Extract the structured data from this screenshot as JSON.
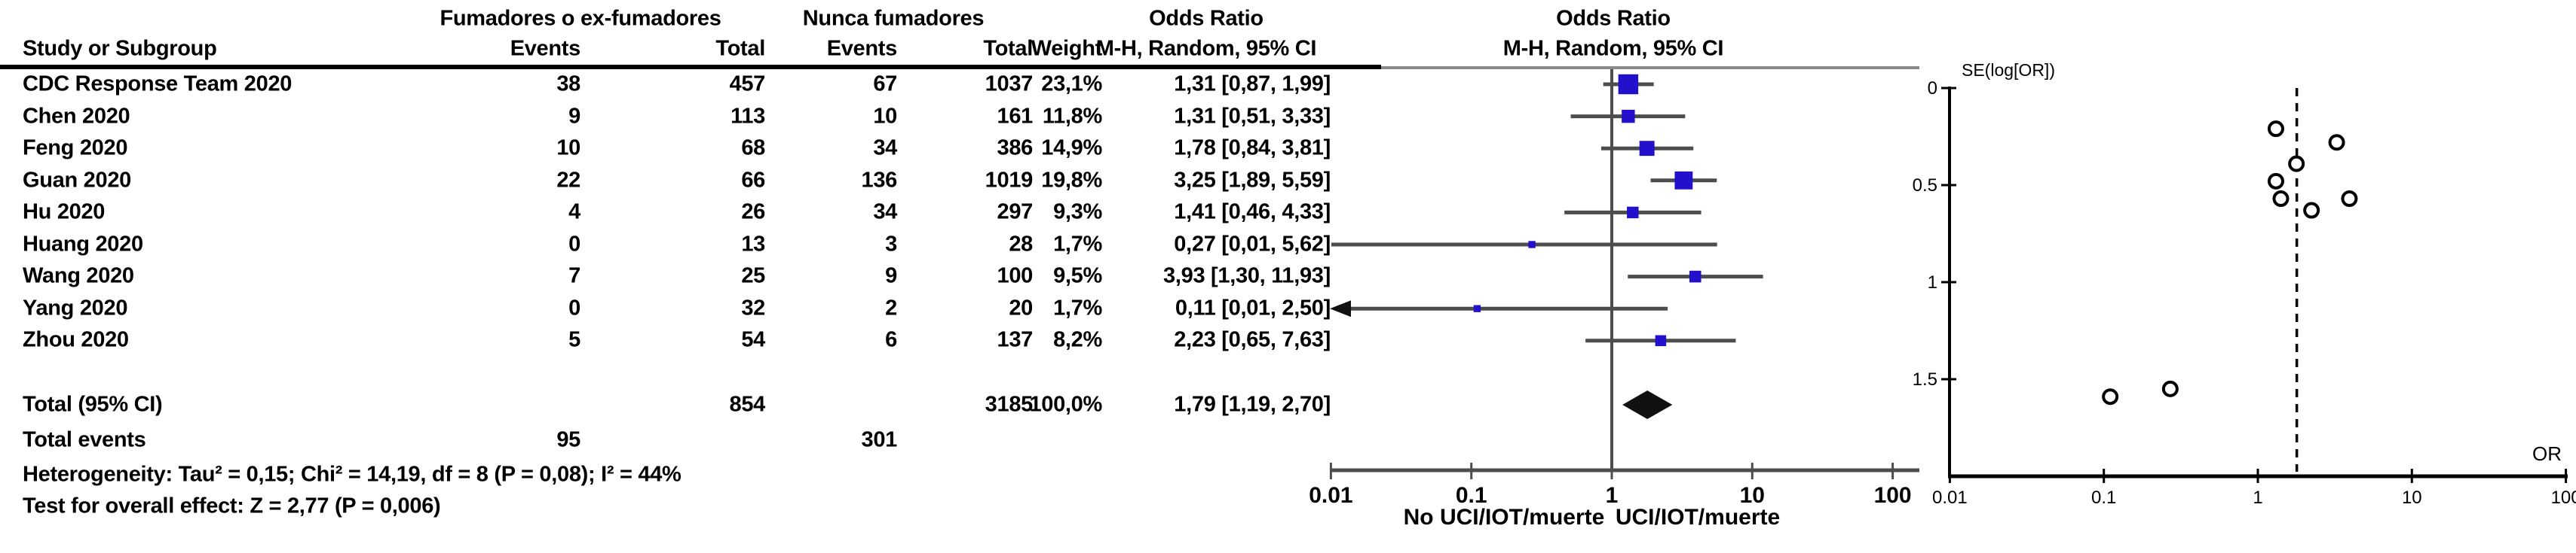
{
  "table": {
    "group1_header": "Fumadores o ex-fumadores",
    "group2_header": "Nunca fumadores",
    "col_study": "Study or Subgroup",
    "col_events": "Events",
    "col_total": "Total",
    "col_weight": "Weight",
    "or_header_line1": "Odds Ratio",
    "or_header_line2": "M-H, Random, 95% CI",
    "plot_header_line1": "Odds Ratio",
    "plot_header_line2": "M-H, Random, 95% CI",
    "rows": [
      {
        "study": "CDC Response Team 2020",
        "events1": "38",
        "total1": "457",
        "events2": "67",
        "total2": "1037",
        "weight": "23,1%",
        "ci": "1,31 [0,87, 1,99]"
      },
      {
        "study": "Chen 2020",
        "events1": "9",
        "total1": "113",
        "events2": "10",
        "total2": "161",
        "weight": "11,8%",
        "ci": "1,31 [0,51, 3,33]"
      },
      {
        "study": "Feng 2020",
        "events1": "10",
        "total1": "68",
        "events2": "34",
        "total2": "386",
        "weight": "14,9%",
        "ci": "1,78 [0,84, 3,81]"
      },
      {
        "study": "Guan 2020",
        "events1": "22",
        "total1": "66",
        "events2": "136",
        "total2": "1019",
        "weight": "19,8%",
        "ci": "3,25 [1,89, 5,59]"
      },
      {
        "study": "Hu 2020",
        "events1": "4",
        "total1": "26",
        "events2": "34",
        "total2": "297",
        "weight": "9,3%",
        "ci": "1,41 [0,46, 4,33]"
      },
      {
        "study": "Huang 2020",
        "events1": "0",
        "total1": "13",
        "events2": "3",
        "total2": "28",
        "weight": "1,7%",
        "ci": "0,27 [0,01, 5,62]"
      },
      {
        "study": "Wang 2020",
        "events1": "7",
        "total1": "25",
        "events2": "9",
        "total2": "100",
        "weight": "9,5%",
        "ci": "3,93 [1,30, 11,93]"
      },
      {
        "study": "Yang 2020",
        "events1": "0",
        "total1": "32",
        "events2": "2",
        "total2": "20",
        "weight": "1,7%",
        "ci": "0,11 [0,01, 2,50]"
      },
      {
        "study": "Zhou 2020",
        "events1": "5",
        "total1": "54",
        "events2": "6",
        "total2": "137",
        "weight": "8,2%",
        "ci": "2,23 [0,65, 7,63]"
      }
    ],
    "total_row": {
      "label": "Total (95% CI)",
      "total1": "854",
      "total2": "3185",
      "weight": "100,0%",
      "ci": "1,79 [1,19, 2,70]"
    },
    "total_events_row": {
      "label": "Total events",
      "events1": "95",
      "events2": "301"
    },
    "heterogeneity": "Heterogeneity: Tau² = 0,15; Chi² = 14,19, df = 8 (P = 0,08); I² = 44%",
    "overall_effect": "Test for overall effect: Z = 2,77 (P = 0,006)"
  },
  "chart_data": [
    {
      "type": "forest",
      "x_scale": "log",
      "xlim": [
        0.01,
        100
      ],
      "x_ticks": [
        "0.01",
        "0.1",
        "1",
        "10",
        "100"
      ],
      "null_line": 1,
      "left_arm_label": "No UCI/IOT/muerte",
      "right_arm_label": "UCI/IOT/muerte",
      "studies": [
        {
          "name": "CDC Response Team 2020",
          "or": 1.31,
          "lo": 0.87,
          "hi": 1.99,
          "weight_pct": 23.1,
          "arrow_left": false
        },
        {
          "name": "Chen 2020",
          "or": 1.31,
          "lo": 0.51,
          "hi": 3.33,
          "weight_pct": 11.8,
          "arrow_left": false
        },
        {
          "name": "Feng 2020",
          "or": 1.78,
          "lo": 0.84,
          "hi": 3.81,
          "weight_pct": 14.9,
          "arrow_left": false
        },
        {
          "name": "Guan 2020",
          "or": 3.25,
          "lo": 1.89,
          "hi": 5.59,
          "weight_pct": 19.8,
          "arrow_left": false
        },
        {
          "name": "Hu 2020",
          "or": 1.41,
          "lo": 0.46,
          "hi": 4.33,
          "weight_pct": 9.3,
          "arrow_left": false
        },
        {
          "name": "Huang 2020",
          "or": 0.27,
          "lo": 0.01,
          "hi": 5.62,
          "weight_pct": 1.7,
          "arrow_left": false
        },
        {
          "name": "Wang 2020",
          "or": 3.93,
          "lo": 1.3,
          "hi": 11.93,
          "weight_pct": 9.5,
          "arrow_left": false
        },
        {
          "name": "Yang 2020",
          "or": 0.11,
          "lo": 0.01,
          "hi": 2.5,
          "weight_pct": 1.7,
          "arrow_left": true
        },
        {
          "name": "Zhou 2020",
          "or": 2.23,
          "lo": 0.65,
          "hi": 7.63,
          "weight_pct": 8.2,
          "arrow_left": false
        }
      ],
      "pooled": {
        "or": 1.79,
        "lo": 1.19,
        "hi": 2.7
      }
    },
    {
      "type": "scatter",
      "subtype": "funnel",
      "xlabel": "OR",
      "ylabel": "SE(log[OR])",
      "x_scale": "log",
      "xlim": [
        0.01,
        100
      ],
      "ylim": [
        0,
        2
      ],
      "x_ticks": [
        "0.01",
        "0.1",
        "1",
        "10",
        "100"
      ],
      "y_ticks": [
        "0",
        "0.5",
        "1",
        "1.5"
      ],
      "pooled_or_line": 1.79,
      "points": [
        {
          "name": "CDC Response Team 2020",
          "or": 1.31,
          "se": 0.21
        },
        {
          "name": "Chen 2020",
          "or": 1.31,
          "se": 0.48
        },
        {
          "name": "Feng 2020",
          "or": 1.78,
          "se": 0.39
        },
        {
          "name": "Guan 2020",
          "or": 3.25,
          "se": 0.28
        },
        {
          "name": "Hu 2020",
          "or": 1.41,
          "se": 0.57
        },
        {
          "name": "Huang 2020",
          "or": 0.27,
          "se": 1.55
        },
        {
          "name": "Wang 2020",
          "or": 3.93,
          "se": 0.57
        },
        {
          "name": "Yang 2020",
          "or": 0.11,
          "se": 1.59
        },
        {
          "name": "Zhou 2020",
          "or": 2.23,
          "se": 0.63
        }
      ]
    }
  ]
}
